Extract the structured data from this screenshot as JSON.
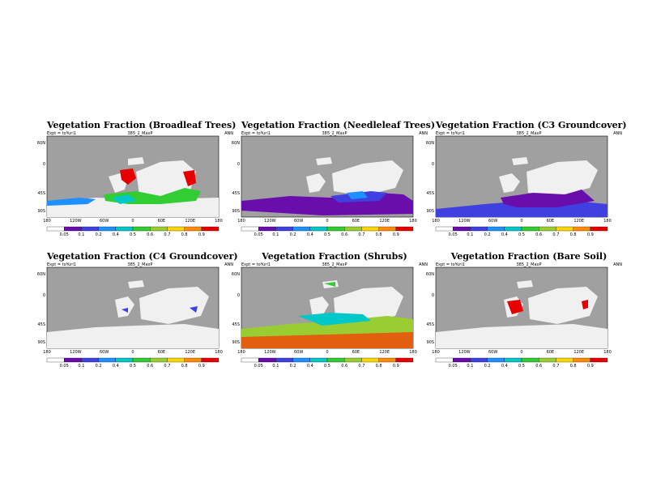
{
  "common": {
    "expt": "Expt = toYuri1",
    "run": "385_2_MaxP",
    "season": "ANN",
    "lat_labels": [
      "60N",
      "0",
      "45S",
      "90S"
    ],
    "lon_labels": [
      "180",
      "120W",
      "60W",
      "0",
      "60E",
      "120E",
      "180"
    ],
    "colorbar_labels": [
      "0.05",
      "0.1",
      "0.2",
      "0.4",
      "0.5",
      "0.6",
      "0.7",
      "0.8",
      "0.9"
    ],
    "colorbar_colors": [
      "#ffffff",
      "#6a0dad",
      "#4040e0",
      "#1e90ff",
      "#00c8c8",
      "#32cd32",
      "#9acd32",
      "#ffd700",
      "#ff8c00",
      "#e60000"
    ],
    "ocean_color": "#a0a0a0",
    "nodata_color": "#f0f0f0"
  },
  "panels": [
    {
      "id": "broadleaf",
      "title": "Vegetation Fraction (Broadleaf Trees)"
    },
    {
      "id": "needleleaf",
      "title": "Vegetation Fraction (Needleleaf Trees)"
    },
    {
      "id": "c3",
      "title": "Vegetation Fraction (C3 Groundcover)"
    },
    {
      "id": "c4",
      "title": "Vegetation Fraction (C4 Groundcover)"
    },
    {
      "id": "shrubs",
      "title": "Vegetation Fraction (Shrubs)"
    },
    {
      "id": "baresoil",
      "title": "Vegetation Fraction (Bare Soil)"
    }
  ]
}
